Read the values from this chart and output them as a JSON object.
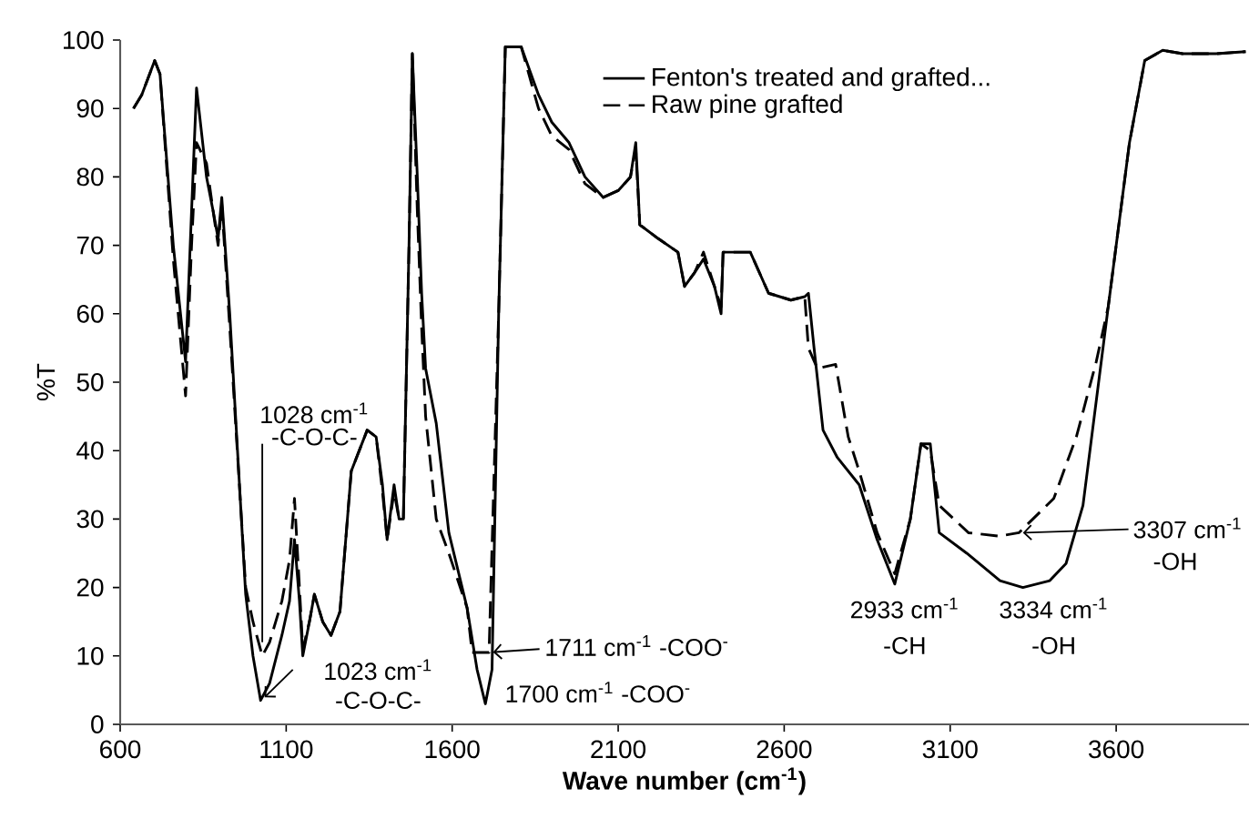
{
  "chart_data": {
    "type": "line",
    "xlabel": "Wave number (cm$^{-1}$)",
    "ylabel": "%T",
    "xlim": [
      600,
      4000
    ],
    "xticks": [
      600,
      1100,
      1600,
      2100,
      2600,
      3100,
      3600
    ],
    "ylim": [
      0,
      100
    ],
    "yticks": [
      0,
      10,
      20,
      30,
      40,
      50,
      60,
      70,
      80,
      90,
      100
    ],
    "grid": false,
    "legend": "top",
    "marker": "none",
    "series": [
      {
        "name": "Fenton's treated and grafted...",
        "color": "#000000",
        "line_style": "solid",
        "x": [
          640,
          665,
          704,
          720,
          760,
          797,
          815,
          830,
          860,
          880,
          895,
          906,
          930,
          978,
          1000,
          1023,
          1050,
          1087,
          1110,
          1125,
          1140,
          1150,
          1170,
          1185,
          1210,
          1235,
          1262,
          1296,
          1344,
          1371,
          1390,
          1404,
          1425,
          1440,
          1453,
          1470,
          1480,
          1495,
          1508,
          1520,
          1552,
          1590,
          1645,
          1675,
          1700,
          1720,
          1740,
          1760,
          1808,
          1860,
          1900,
          1952,
          2000,
          2055,
          2100,
          2137,
          2153,
          2165,
          2220,
          2280,
          2300,
          2330,
          2357,
          2390,
          2410,
          2416,
          2460,
          2498,
          2553,
          2620,
          2662,
          2673,
          2690,
          2717,
          2760,
          2826,
          2880,
          2933,
          2980,
          3012,
          3040,
          3067,
          3150,
          3250,
          3319,
          3400,
          3449,
          3500,
          3576,
          3640,
          3686,
          3740,
          3800,
          3900,
          3990
        ],
        "values": [
          90,
          92,
          97,
          95,
          70,
          53,
          75,
          93,
          80,
          75,
          71,
          77,
          60,
          19,
          10,
          3.5,
          6,
          13,
          18,
          27,
          18,
          10,
          15,
          19,
          15,
          13,
          16.5,
          37,
          43,
          42,
          35,
          27,
          35,
          30,
          30,
          70,
          98,
          80,
          63,
          52,
          44,
          28,
          17,
          8,
          3,
          8,
          60,
          99,
          99,
          92,
          88,
          85,
          80,
          77,
          78,
          80,
          85,
          73,
          71,
          69,
          64,
          66,
          68,
          64,
          60,
          69,
          69,
          69,
          63,
          62,
          62.5,
          63,
          55,
          43,
          39,
          35,
          27,
          20.5,
          30,
          41,
          41,
          28,
          25,
          21,
          20,
          21,
          23.5,
          32,
          61,
          85,
          97,
          98.5,
          98,
          98,
          98.3
        ]
      },
      {
        "name": "Raw pine grafted",
        "color": "#000000",
        "line_style": "dashed",
        "x": [
          640,
          665,
          704,
          720,
          760,
          797,
          815,
          830,
          860,
          880,
          895,
          906,
          930,
          978,
          1000,
          1028,
          1050,
          1087,
          1110,
          1125,
          1140,
          1150,
          1170,
          1185,
          1210,
          1235,
          1262,
          1296,
          1344,
          1371,
          1390,
          1404,
          1425,
          1440,
          1453,
          1470,
          1480,
          1495,
          1508,
          1520,
          1552,
          1590,
          1645,
          1660,
          1711,
          1740,
          1760,
          1808,
          1860,
          1900,
          1952,
          2000,
          2055,
          2100,
          2137,
          2153,
          2165,
          2220,
          2280,
          2300,
          2330,
          2357,
          2390,
          2410,
          2416,
          2460,
          2498,
          2553,
          2620,
          2662,
          2673,
          2700,
          2755,
          2793,
          2826,
          2880,
          2933,
          2980,
          3012,
          3040,
          3067,
          3155,
          3248,
          3307,
          3412,
          3480,
          3540,
          3576,
          3640,
          3686,
          3740,
          3800,
          3900,
          3990
        ],
        "values": [
          90,
          92,
          97,
          95,
          68,
          48,
          70,
          85,
          82,
          75,
          70,
          76,
          58,
          20,
          15,
          10,
          12,
          18,
          24,
          33,
          20,
          11,
          15,
          19,
          15,
          13,
          16.5,
          37,
          43,
          42,
          34,
          27,
          34,
          30,
          30,
          70,
          98,
          75,
          58,
          45,
          30,
          25,
          17,
          10.5,
          10.5,
          60,
          99,
          99,
          90,
          86,
          84,
          79,
          77,
          78,
          80,
          84,
          73,
          71,
          69,
          64,
          66,
          69,
          64,
          61,
          69,
          69,
          69,
          63,
          62,
          62.5,
          55,
          52,
          52.6,
          42,
          37,
          28,
          22,
          30,
          41,
          40,
          32,
          28,
          27.5,
          28,
          33,
          42,
          53,
          61,
          85,
          97,
          98.5,
          98,
          98,
          98.3
        ]
      }
    ],
    "annotations": [
      {
        "text": "1028 cm$^{-1}$",
        "x": 1028,
        "y": 12
      },
      {
        "text": "-C-O-C-",
        "x": 1028,
        "y": 12
      },
      {
        "text": "1023 cm$^{-1}$",
        "x": 1023,
        "y": 3.5
      },
      "-C-O-C-",
      {
        "text": "1711 cm$^{-1}$ -COO$^{-}$",
        "x": 1711,
        "y": 10.5
      },
      {
        "text": "1700 cm$^{-1}$ -COO$^{-}$",
        "x": 1700,
        "y": 3
      },
      {
        "text": "2933 cm$^{-1}$",
        "x": 2933,
        "y": 20.5
      },
      {
        "text": "-CH",
        "x": 2933,
        "y": 20.5
      },
      {
        "text": "3334 cm$^{-1}$",
        "x": 3334,
        "y": 20
      },
      {
        "text": "-OH",
        "x": 3334,
        "y": 20
      },
      "3307 cm$^{-1}$",
      "-OH"
    ]
  }
}
